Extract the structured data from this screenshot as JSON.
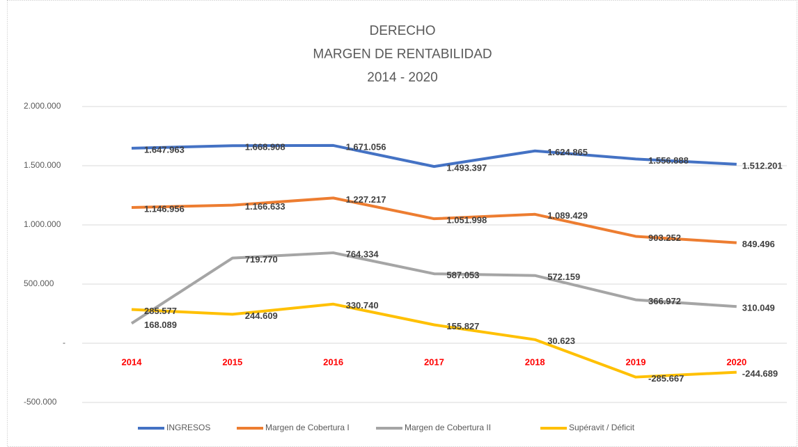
{
  "chart_data": {
    "type": "line",
    "title": [
      "DERECHO",
      "MARGEN DE RENTABILIDAD",
      "2014 - 2020"
    ],
    "categories": [
      "2014",
      "2015",
      "2016",
      "2017",
      "2018",
      "2019",
      "2020"
    ],
    "series": [
      {
        "name": "INGRESOS",
        "color": "#4472c4",
        "values": [
          1647963,
          1668908,
          1671056,
          1493397,
          1624865,
          1556888,
          1512201
        ],
        "value_labels": [
          "1.647.963",
          "1.668.908",
          "1.671.056",
          "1.493.397",
          "1.624.865",
          "1.556.888",
          "1.512.201"
        ]
      },
      {
        "name": "Margen de Cobertura I",
        "color": "#ed7d31",
        "values": [
          1146956,
          1166633,
          1227217,
          1051998,
          1089429,
          903252,
          849496
        ],
        "value_labels": [
          "1.146.956",
          "1.166.633",
          "1.227.217",
          "1.051.998",
          "1.089.429",
          "903.252",
          "849.496"
        ]
      },
      {
        "name": "Margen de Cobertura II",
        "color": "#a5a5a5",
        "values": [
          168089,
          719770,
          764334,
          587053,
          572159,
          366972,
          310049
        ],
        "value_labels": [
          "168.089",
          "719.770",
          "764.334",
          "587.053",
          "572.159",
          "366.972",
          "310.049"
        ]
      },
      {
        "name": "Supéravit / Déficit",
        "color": "#ffc000",
        "values": [
          285577,
          244609,
          330740,
          155827,
          30623,
          -285667,
          -244689
        ],
        "value_labels": [
          "285.577",
          "244.609",
          "330.740",
          "155.827",
          "30.623",
          "-285.667",
          "-244.689"
        ]
      }
    ],
    "ylim": [
      -500000,
      2000000
    ],
    "yticks": [
      {
        "value": -500000,
        "label": "-500.000"
      },
      {
        "value": 0,
        "label": "-"
      },
      {
        "value": 500000,
        "label": "500.000"
      },
      {
        "value": 1000000,
        "label": "1.000.000"
      },
      {
        "value": 1500000,
        "label": "1.500.000"
      },
      {
        "value": 2000000,
        "label": "2.000.000"
      }
    ],
    "grid": true,
    "legend": "bottom"
  }
}
